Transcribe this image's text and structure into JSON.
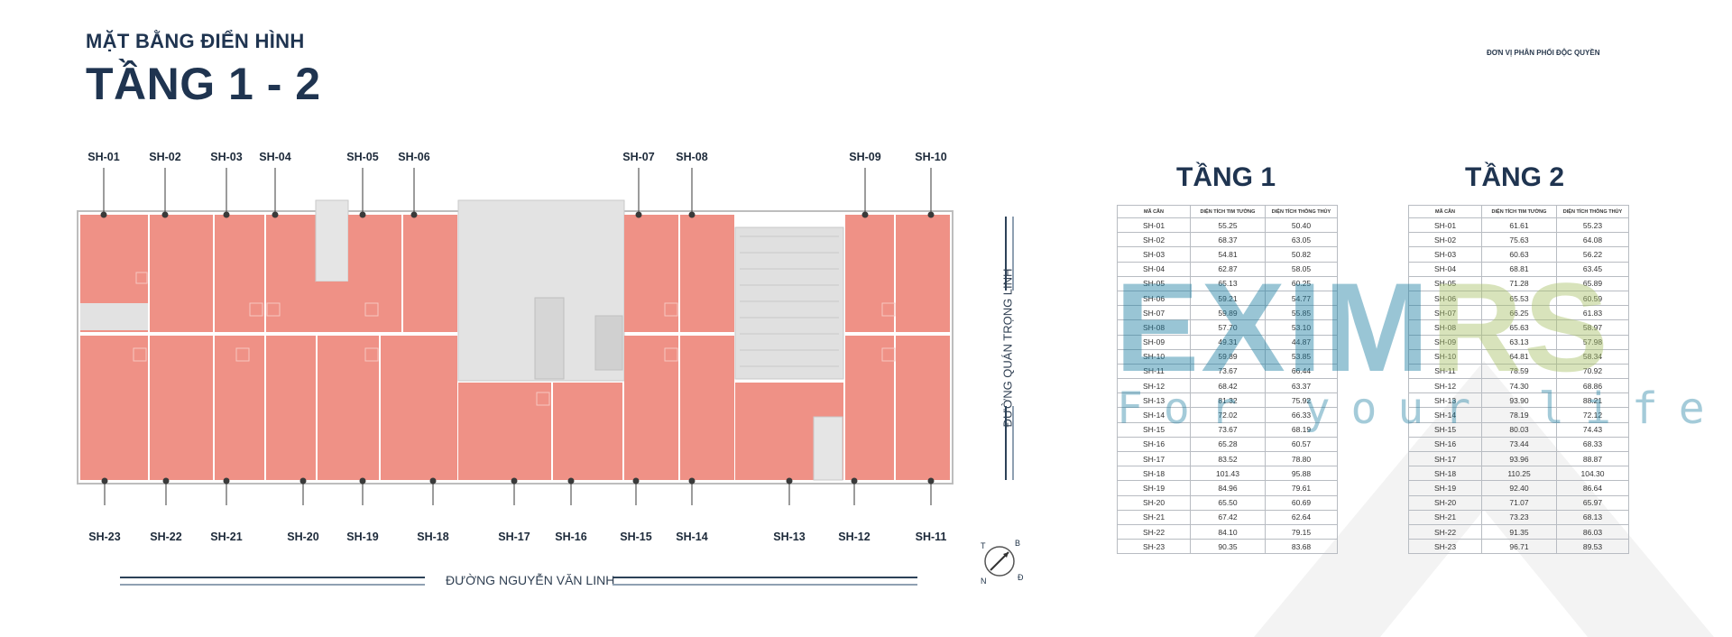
{
  "header": {
    "subtitle": "MẶT BẰNG ĐIỂN HÌNH",
    "title": "TẦNG 1 - 2",
    "distributor": "ĐƠN VỊ PHÂN PHỐI ĐỘC QUYỀN"
  },
  "plan": {
    "top_units": [
      "SH-01",
      "SH-02",
      "SH-03",
      "SH-04",
      "SH-05",
      "SH-06",
      "SH-07",
      "SH-08",
      "SH-09",
      "SH-10"
    ],
    "bottom_units": [
      "SH-23",
      "SH-22",
      "SH-21",
      "SH-20",
      "SH-19",
      "SH-18",
      "SH-17",
      "SH-16",
      "SH-15",
      "SH-14",
      "SH-13",
      "SH-12",
      "SH-11"
    ],
    "road_bottom": "ĐƯỜNG NGUYỄN VĂN LINH",
    "road_right": "ĐƯỜNG QUÁN TRỌNG LINH",
    "compass": {
      "t": "T",
      "b": "B",
      "n": "N",
      "d": "Đ"
    },
    "colors": {
      "unit": "#ef9186",
      "core": "#e2e2e2",
      "wall": "#c9c9c9"
    }
  },
  "tables": {
    "columns": [
      "MÃ CĂN",
      "DIỆN TÍCH TIM TƯỜNG",
      "DIỆN TÍCH THÔNG THỦY"
    ],
    "floor1": {
      "title": "TẦNG 1",
      "rows": [
        [
          "SH-01",
          "55.25",
          "50.40"
        ],
        [
          "SH-02",
          "68.37",
          "63.05"
        ],
        [
          "SH-03",
          "54.81",
          "50.82"
        ],
        [
          "SH-04",
          "62.87",
          "58.05"
        ],
        [
          "SH-05",
          "65.13",
          "60.25"
        ],
        [
          "SH-06",
          "59.21",
          "54.77"
        ],
        [
          "SH-07",
          "59.89",
          "55.85"
        ],
        [
          "SH-08",
          "57.70",
          "53.10"
        ],
        [
          "SH-09",
          "49.31",
          "44.87"
        ],
        [
          "SH-10",
          "59.89",
          "53.85"
        ],
        [
          "SH-11",
          "73.67",
          "66.44"
        ],
        [
          "SH-12",
          "68.42",
          "63.37"
        ],
        [
          "SH-13",
          "81.32",
          "75.92"
        ],
        [
          "SH-14",
          "72.02",
          "66.33"
        ],
        [
          "SH-15",
          "73.67",
          "68.19"
        ],
        [
          "SH-16",
          "65.28",
          "60.57"
        ],
        [
          "SH-17",
          "83.52",
          "78.80"
        ],
        [
          "SH-18",
          "101.43",
          "95.88"
        ],
        [
          "SH-19",
          "84.96",
          "79.61"
        ],
        [
          "SH-20",
          "65.50",
          "60.69"
        ],
        [
          "SH-21",
          "67.42",
          "62.64"
        ],
        [
          "SH-22",
          "84.10",
          "79.15"
        ],
        [
          "SH-23",
          "90.35",
          "83.68"
        ]
      ]
    },
    "floor2": {
      "title": "TẦNG 2",
      "rows": [
        [
          "SH-01",
          "61.61",
          "55.23"
        ],
        [
          "SH-02",
          "75.63",
          "64.08"
        ],
        [
          "SH-03",
          "60.63",
          "56.22"
        ],
        [
          "SH-04",
          "68.81",
          "63.45"
        ],
        [
          "SH-05",
          "71.28",
          "65.89"
        ],
        [
          "SH-06",
          "65.53",
          "60.59"
        ],
        [
          "SH-07",
          "66.25",
          "61.83"
        ],
        [
          "SH-08",
          "65.63",
          "58.97"
        ],
        [
          "SH-09",
          "63.13",
          "57.98"
        ],
        [
          "SH-10",
          "64.81",
          "58.34"
        ],
        [
          "SH-11",
          "78.59",
          "70.92"
        ],
        [
          "SH-12",
          "74.30",
          "68.86"
        ],
        [
          "SH-13",
          "93.90",
          "88.21"
        ],
        [
          "SH-14",
          "78.19",
          "72.12"
        ],
        [
          "SH-15",
          "80.03",
          "74.43"
        ],
        [
          "SH-16",
          "73.44",
          "68.33"
        ],
        [
          "SH-17",
          "93.96",
          "88.87"
        ],
        [
          "SH-18",
          "110.25",
          "104.30"
        ],
        [
          "SH-19",
          "92.40",
          "86.64"
        ],
        [
          "SH-20",
          "71.07",
          "65.97"
        ],
        [
          "SH-21",
          "73.23",
          "68.13"
        ],
        [
          "SH-22",
          "91.35",
          "86.03"
        ],
        [
          "SH-23",
          "96.71",
          "89.53"
        ]
      ]
    }
  },
  "watermark": {
    "letters": "EXIMRS",
    "tagline": "For your life",
    "colors": {
      "blue": "#1f7fa3",
      "green": "#a9c26b",
      "triangle": "#f2f2f2"
    }
  }
}
